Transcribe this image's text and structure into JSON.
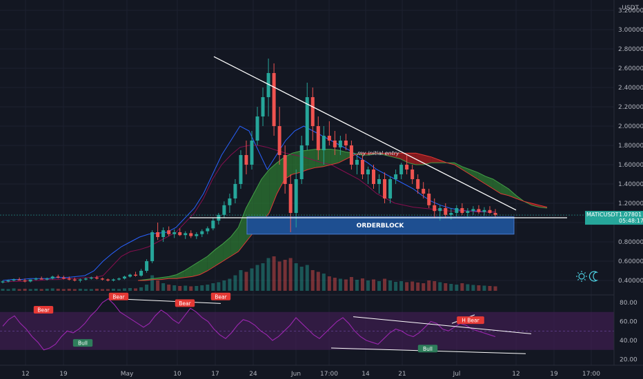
{
  "chart_data": {
    "type": "line",
    "symbol": "MATICUSDT",
    "price_axis": {
      "currency": "USDT",
      "ticks": [
        "3.20000",
        "3.00000",
        "2.80000",
        "2.60000",
        "2.40000",
        "2.20000",
        "2.00000",
        "1.80000",
        "1.60000",
        "1.40000",
        "1.20000",
        "1.00000",
        "0.80000",
        "0.60000",
        "0.40000"
      ],
      "ylim": [
        0.3,
        3.2
      ]
    },
    "rsi_axis": {
      "ticks": [
        "80.00",
        "60.00",
        "40.00",
        "20.00"
      ],
      "ylim": [
        15,
        90
      ]
    },
    "x_ticks": [
      "12",
      "19",
      "May",
      "10",
      "17",
      "24",
      "Jun",
      "17:00",
      "14",
      "21",
      "Jul",
      "12",
      "19",
      "17:00"
    ],
    "last_price": {
      "symbol": "MATICUSDT",
      "price": "1.07801",
      "countdown": "05:48:17"
    },
    "candles": [
      [
        0.38,
        0.4,
        0.37,
        0.39
      ],
      [
        0.39,
        0.41,
        0.38,
        0.4
      ],
      [
        0.4,
        0.42,
        0.39,
        0.41
      ],
      [
        0.41,
        0.43,
        0.4,
        0.4
      ],
      [
        0.4,
        0.42,
        0.38,
        0.39
      ],
      [
        0.39,
        0.41,
        0.38,
        0.41
      ],
      [
        0.41,
        0.43,
        0.4,
        0.42
      ],
      [
        0.42,
        0.44,
        0.41,
        0.41
      ],
      [
        0.41,
        0.43,
        0.4,
        0.42
      ],
      [
        0.42,
        0.45,
        0.41,
        0.44
      ],
      [
        0.44,
        0.46,
        0.42,
        0.43
      ],
      [
        0.43,
        0.45,
        0.41,
        0.42
      ],
      [
        0.42,
        0.44,
        0.4,
        0.41
      ],
      [
        0.41,
        0.43,
        0.39,
        0.4
      ],
      [
        0.4,
        0.42,
        0.38,
        0.41
      ],
      [
        0.41,
        0.43,
        0.4,
        0.42
      ],
      [
        0.42,
        0.44,
        0.41,
        0.43
      ],
      [
        0.43,
        0.45,
        0.41,
        0.42
      ],
      [
        0.42,
        0.43,
        0.4,
        0.41
      ],
      [
        0.41,
        0.42,
        0.39,
        0.4
      ],
      [
        0.4,
        0.42,
        0.39,
        0.41
      ],
      [
        0.41,
        0.43,
        0.4,
        0.42
      ],
      [
        0.42,
        0.45,
        0.41,
        0.44
      ],
      [
        0.44,
        0.47,
        0.43,
        0.46
      ],
      [
        0.46,
        0.49,
        0.44,
        0.45
      ],
      [
        0.45,
        0.52,
        0.44,
        0.5
      ],
      [
        0.5,
        0.62,
        0.48,
        0.6
      ],
      [
        0.6,
        0.92,
        0.58,
        0.9
      ],
      [
        0.9,
        1.0,
        0.82,
        0.85
      ],
      [
        0.85,
        0.95,
        0.8,
        0.92
      ],
      [
        0.92,
        0.96,
        0.86,
        0.88
      ],
      [
        0.88,
        0.93,
        0.84,
        0.9
      ],
      [
        0.9,
        0.94,
        0.86,
        0.87
      ],
      [
        0.87,
        0.91,
        0.83,
        0.89
      ],
      [
        0.89,
        0.92,
        0.84,
        0.86
      ],
      [
        0.86,
        0.9,
        0.83,
        0.88
      ],
      [
        0.88,
        0.93,
        0.85,
        0.91
      ],
      [
        0.91,
        0.96,
        0.88,
        0.94
      ],
      [
        0.94,
        1.05,
        0.92,
        1.02
      ],
      [
        1.02,
        1.1,
        0.98,
        1.08
      ],
      [
        1.08,
        1.22,
        1.05,
        1.18
      ],
      [
        1.18,
        1.3,
        1.1,
        1.25
      ],
      [
        1.25,
        1.45,
        1.2,
        1.4
      ],
      [
        1.4,
        1.75,
        1.35,
        1.7
      ],
      [
        1.7,
        1.85,
        1.5,
        1.6
      ],
      [
        1.6,
        1.95,
        1.55,
        1.85
      ],
      [
        1.85,
        2.2,
        1.8,
        2.1
      ],
      [
        2.1,
        2.4,
        2.0,
        2.3
      ],
      [
        2.3,
        2.7,
        2.1,
        2.55
      ],
      [
        2.55,
        2.65,
        1.9,
        2.0
      ],
      [
        2.0,
        2.2,
        1.6,
        1.7
      ],
      [
        1.7,
        1.8,
        1.3,
        1.4
      ],
      [
        1.4,
        1.5,
        0.9,
        1.1
      ],
      [
        1.1,
        1.55,
        0.95,
        1.45
      ],
      [
        1.45,
        1.9,
        1.4,
        1.8
      ],
      [
        1.8,
        2.45,
        1.75,
        2.3
      ],
      [
        2.3,
        2.4,
        1.85,
        2.0
      ],
      [
        2.0,
        2.1,
        1.65,
        1.75
      ],
      [
        1.75,
        2.0,
        1.6,
        1.9
      ],
      [
        1.9,
        2.05,
        1.8,
        1.85
      ],
      [
        1.85,
        1.95,
        1.7,
        1.78
      ],
      [
        1.78,
        1.9,
        1.7,
        1.85
      ],
      [
        1.85,
        1.92,
        1.75,
        1.8
      ],
      [
        1.8,
        1.85,
        1.55,
        1.6
      ],
      [
        1.6,
        1.7,
        1.5,
        1.65
      ],
      [
        1.65,
        1.7,
        1.45,
        1.5
      ],
      [
        1.5,
        1.58,
        1.4,
        1.55
      ],
      [
        1.55,
        1.6,
        1.35,
        1.4
      ],
      [
        1.4,
        1.5,
        1.3,
        1.45
      ],
      [
        1.45,
        1.52,
        1.2,
        1.25
      ],
      [
        1.25,
        1.48,
        1.2,
        1.45
      ],
      [
        1.45,
        1.55,
        1.4,
        1.5
      ],
      [
        1.5,
        1.62,
        1.45,
        1.6
      ],
      [
        1.6,
        1.7,
        1.5,
        1.55
      ],
      [
        1.55,
        1.6,
        1.4,
        1.45
      ],
      [
        1.45,
        1.5,
        1.3,
        1.35
      ],
      [
        1.35,
        1.42,
        1.25,
        1.3
      ],
      [
        1.3,
        1.35,
        1.15,
        1.18
      ],
      [
        1.18,
        1.25,
        1.05,
        1.12
      ],
      [
        1.12,
        1.18,
        1.02,
        1.15
      ],
      [
        1.15,
        1.2,
        1.05,
        1.08
      ],
      [
        1.08,
        1.15,
        1.03,
        1.1
      ],
      [
        1.1,
        1.18,
        1.06,
        1.15
      ],
      [
        1.15,
        1.2,
        1.08,
        1.1
      ],
      [
        1.1,
        1.15,
        1.05,
        1.12
      ],
      [
        1.12,
        1.17,
        1.08,
        1.14
      ],
      [
        1.14,
        1.18,
        1.09,
        1.11
      ],
      [
        1.11,
        1.16,
        1.07,
        1.13
      ],
      [
        1.13,
        1.17,
        1.09,
        1.1
      ],
      [
        1.1,
        1.14,
        1.06,
        1.08
      ]
    ],
    "volume": [
      0.06,
      0.05,
      0.07,
      0.05,
      0.06,
      0.05,
      0.06,
      0.05,
      0.06,
      0.07,
      0.06,
      0.05,
      0.06,
      0.05,
      0.06,
      0.05,
      0.05,
      0.06,
      0.05,
      0.05,
      0.06,
      0.05,
      0.07,
      0.08,
      0.07,
      0.1,
      0.18,
      0.45,
      0.3,
      0.22,
      0.18,
      0.16,
      0.14,
      0.15,
      0.13,
      0.14,
      0.16,
      0.18,
      0.22,
      0.25,
      0.3,
      0.35,
      0.45,
      0.6,
      0.55,
      0.65,
      0.75,
      0.8,
      0.95,
      1.0,
      0.85,
      0.9,
      0.95,
      0.8,
      0.7,
      0.75,
      0.6,
      0.55,
      0.5,
      0.42,
      0.38,
      0.35,
      0.33,
      0.4,
      0.32,
      0.36,
      0.3,
      0.33,
      0.28,
      0.35,
      0.3,
      0.26,
      0.28,
      0.25,
      0.27,
      0.24,
      0.22,
      0.3,
      0.28,
      0.25,
      0.22,
      0.2,
      0.18,
      0.22,
      0.19,
      0.17,
      0.16,
      0.15,
      0.14,
      0.13
    ],
    "rsi": [
      55,
      62,
      66,
      58,
      52,
      44,
      38,
      30,
      32,
      36,
      44,
      50,
      48,
      52,
      58,
      66,
      72,
      80,
      84,
      78,
      70,
      66,
      62,
      58,
      54,
      58,
      66,
      72,
      68,
      62,
      58,
      66,
      74,
      70,
      64,
      60,
      52,
      46,
      42,
      48,
      56,
      62,
      60,
      56,
      50,
      46,
      40,
      44,
      50,
      56,
      64,
      58,
      52,
      46,
      42,
      48,
      54,
      60,
      64,
      58,
      50,
      44,
      40,
      38,
      36,
      42,
      48,
      52,
      50,
      46,
      44,
      48,
      54,
      60,
      58,
      52,
      50,
      54,
      58,
      56,
      52,
      50,
      48,
      46,
      44
    ],
    "ichimoku": {
      "tenkan": [
        0.4,
        0.41,
        0.41,
        0.42,
        0.42,
        0.42,
        0.43,
        0.43,
        0.44,
        0.45,
        0.5,
        0.6,
        0.68,
        0.75,
        0.8,
        0.85,
        0.88,
        0.89,
        0.9,
        0.95,
        1.05,
        1.15,
        1.3,
        1.5,
        1.7,
        1.85,
        2.0,
        1.95,
        1.75,
        1.55,
        1.7,
        1.85,
        1.95,
        2.0,
        1.95,
        1.9,
        1.85,
        1.8,
        1.75,
        1.68,
        1.62,
        1.55,
        1.5,
        1.45,
        1.4,
        1.35,
        1.28,
        1.22,
        1.18,
        1.15,
        1.13,
        1.12,
        1.12,
        1.11,
        1.11
      ],
      "kijun": [
        0.38,
        0.39,
        0.39,
        0.4,
        0.4,
        0.41,
        0.41,
        0.42,
        0.42,
        0.43,
        0.43,
        0.45,
        0.55,
        0.65,
        0.7,
        0.72,
        0.75,
        0.8,
        0.85,
        0.9,
        1.0,
        1.1,
        1.25,
        1.45,
        1.6,
        1.7,
        1.78,
        1.8,
        1.8,
        1.78,
        1.75,
        1.72,
        1.7,
        1.68,
        1.65,
        1.62,
        1.6,
        1.55,
        1.5,
        1.45,
        1.38,
        1.3,
        1.25,
        1.2,
        1.18,
        1.16,
        1.15,
        1.14,
        1.13,
        1.12,
        1.12,
        1.12,
        1.11,
        1.11,
        1.11
      ],
      "span_a": [
        0.4,
        0.41,
        0.42,
        0.43,
        0.44,
        0.46,
        0.5,
        0.55,
        0.6,
        0.65,
        0.72,
        0.78,
        0.85,
        0.95,
        1.15,
        1.3,
        1.45,
        1.55,
        1.62,
        1.68,
        1.72,
        1.74,
        1.75,
        1.76,
        1.76,
        1.76,
        1.75,
        1.73,
        1.72,
        1.7,
        1.7,
        1.72,
        1.7,
        1.68,
        1.66,
        1.62,
        1.6,
        1.6,
        1.62,
        1.62,
        1.62,
        1.62,
        1.58,
        1.55,
        1.52,
        1.48,
        1.45,
        1.4,
        1.35,
        1.28,
        1.22,
        1.18,
        1.16,
        1.15
      ],
      "span_b": [
        0.4,
        0.4,
        0.41,
        0.41,
        0.42,
        0.42,
        0.43,
        0.44,
        0.46,
        0.5,
        0.55,
        0.6,
        0.65,
        0.7,
        0.8,
        0.9,
        1.0,
        1.1,
        1.3,
        1.45,
        1.5,
        1.52,
        1.55,
        1.57,
        1.58,
        1.6,
        1.62,
        1.66,
        1.7,
        1.72,
        1.72,
        1.72,
        1.72,
        1.72,
        1.72,
        1.72,
        1.72,
        1.7,
        1.68,
        1.65,
        1.62,
        1.6,
        1.55,
        1.5,
        1.45,
        1.4,
        1.35,
        1.3,
        1.28,
        1.25,
        1.22,
        1.2,
        1.18,
        1.16
      ]
    },
    "annotations": {
      "trendline_text": "my initial entry",
      "orderblock": {
        "label": "ORDERBLOCK",
        "top": 1.06,
        "bottom": 0.88
      },
      "support_line": 1.05,
      "rsi_labels": [
        "Bear",
        "Bear",
        "Bear",
        "Bear",
        "Bull",
        "H Bear",
        "Bull"
      ]
    },
    "colors": {
      "up": "#26a69a",
      "down": "#ef5350",
      "orderblock": "#1e4f91",
      "cloud_bull": "#2e7d32",
      "cloud_bear": "#b71c1c",
      "rsi_line": "#9c27b0",
      "rsi_band": "#4a1f5c",
      "last_price_bg": "#26a69a",
      "bear_label": "#e53935",
      "bull_label": "#2e7d5b"
    }
  },
  "branding_icon": "sun-moon-icon"
}
